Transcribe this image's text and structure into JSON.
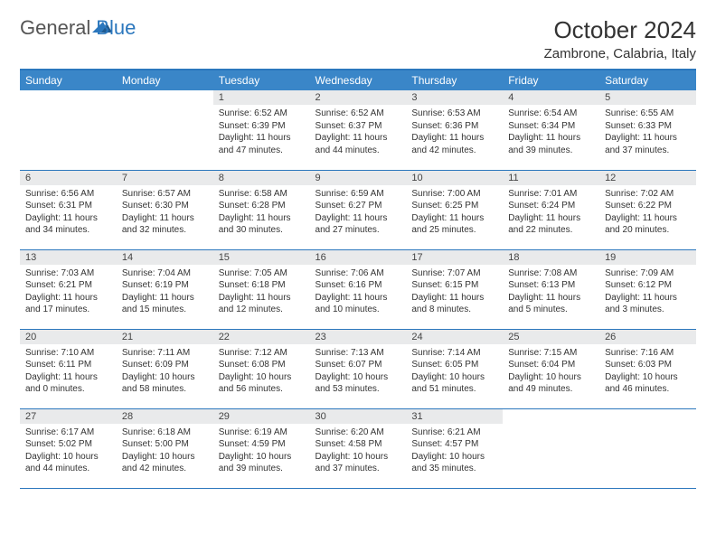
{
  "logo": {
    "text1": "General",
    "text2": "Blue"
  },
  "title": "October 2024",
  "location": "Zambrone, Calabria, Italy",
  "colors": {
    "header_bg": "#3a86c8",
    "border": "#2b77bd",
    "daynum_bg": "#e9eaeb",
    "text": "#333333"
  },
  "weekdays": [
    "Sunday",
    "Monday",
    "Tuesday",
    "Wednesday",
    "Thursday",
    "Friday",
    "Saturday"
  ],
  "weeks": [
    [
      null,
      null,
      {
        "n": "1",
        "sr": "Sunrise: 6:52 AM",
        "ss": "Sunset: 6:39 PM",
        "d1": "Daylight: 11 hours",
        "d2": "and 47 minutes."
      },
      {
        "n": "2",
        "sr": "Sunrise: 6:52 AM",
        "ss": "Sunset: 6:37 PM",
        "d1": "Daylight: 11 hours",
        "d2": "and 44 minutes."
      },
      {
        "n": "3",
        "sr": "Sunrise: 6:53 AM",
        "ss": "Sunset: 6:36 PM",
        "d1": "Daylight: 11 hours",
        "d2": "and 42 minutes."
      },
      {
        "n": "4",
        "sr": "Sunrise: 6:54 AM",
        "ss": "Sunset: 6:34 PM",
        "d1": "Daylight: 11 hours",
        "d2": "and 39 minutes."
      },
      {
        "n": "5",
        "sr": "Sunrise: 6:55 AM",
        "ss": "Sunset: 6:33 PM",
        "d1": "Daylight: 11 hours",
        "d2": "and 37 minutes."
      }
    ],
    [
      {
        "n": "6",
        "sr": "Sunrise: 6:56 AM",
        "ss": "Sunset: 6:31 PM",
        "d1": "Daylight: 11 hours",
        "d2": "and 34 minutes."
      },
      {
        "n": "7",
        "sr": "Sunrise: 6:57 AM",
        "ss": "Sunset: 6:30 PM",
        "d1": "Daylight: 11 hours",
        "d2": "and 32 minutes."
      },
      {
        "n": "8",
        "sr": "Sunrise: 6:58 AM",
        "ss": "Sunset: 6:28 PM",
        "d1": "Daylight: 11 hours",
        "d2": "and 30 minutes."
      },
      {
        "n": "9",
        "sr": "Sunrise: 6:59 AM",
        "ss": "Sunset: 6:27 PM",
        "d1": "Daylight: 11 hours",
        "d2": "and 27 minutes."
      },
      {
        "n": "10",
        "sr": "Sunrise: 7:00 AM",
        "ss": "Sunset: 6:25 PM",
        "d1": "Daylight: 11 hours",
        "d2": "and 25 minutes."
      },
      {
        "n": "11",
        "sr": "Sunrise: 7:01 AM",
        "ss": "Sunset: 6:24 PM",
        "d1": "Daylight: 11 hours",
        "d2": "and 22 minutes."
      },
      {
        "n": "12",
        "sr": "Sunrise: 7:02 AM",
        "ss": "Sunset: 6:22 PM",
        "d1": "Daylight: 11 hours",
        "d2": "and 20 minutes."
      }
    ],
    [
      {
        "n": "13",
        "sr": "Sunrise: 7:03 AM",
        "ss": "Sunset: 6:21 PM",
        "d1": "Daylight: 11 hours",
        "d2": "and 17 minutes."
      },
      {
        "n": "14",
        "sr": "Sunrise: 7:04 AM",
        "ss": "Sunset: 6:19 PM",
        "d1": "Daylight: 11 hours",
        "d2": "and 15 minutes."
      },
      {
        "n": "15",
        "sr": "Sunrise: 7:05 AM",
        "ss": "Sunset: 6:18 PM",
        "d1": "Daylight: 11 hours",
        "d2": "and 12 minutes."
      },
      {
        "n": "16",
        "sr": "Sunrise: 7:06 AM",
        "ss": "Sunset: 6:16 PM",
        "d1": "Daylight: 11 hours",
        "d2": "and 10 minutes."
      },
      {
        "n": "17",
        "sr": "Sunrise: 7:07 AM",
        "ss": "Sunset: 6:15 PM",
        "d1": "Daylight: 11 hours",
        "d2": "and 8 minutes."
      },
      {
        "n": "18",
        "sr": "Sunrise: 7:08 AM",
        "ss": "Sunset: 6:13 PM",
        "d1": "Daylight: 11 hours",
        "d2": "and 5 minutes."
      },
      {
        "n": "19",
        "sr": "Sunrise: 7:09 AM",
        "ss": "Sunset: 6:12 PM",
        "d1": "Daylight: 11 hours",
        "d2": "and 3 minutes."
      }
    ],
    [
      {
        "n": "20",
        "sr": "Sunrise: 7:10 AM",
        "ss": "Sunset: 6:11 PM",
        "d1": "Daylight: 11 hours",
        "d2": "and 0 minutes."
      },
      {
        "n": "21",
        "sr": "Sunrise: 7:11 AM",
        "ss": "Sunset: 6:09 PM",
        "d1": "Daylight: 10 hours",
        "d2": "and 58 minutes."
      },
      {
        "n": "22",
        "sr": "Sunrise: 7:12 AM",
        "ss": "Sunset: 6:08 PM",
        "d1": "Daylight: 10 hours",
        "d2": "and 56 minutes."
      },
      {
        "n": "23",
        "sr": "Sunrise: 7:13 AM",
        "ss": "Sunset: 6:07 PM",
        "d1": "Daylight: 10 hours",
        "d2": "and 53 minutes."
      },
      {
        "n": "24",
        "sr": "Sunrise: 7:14 AM",
        "ss": "Sunset: 6:05 PM",
        "d1": "Daylight: 10 hours",
        "d2": "and 51 minutes."
      },
      {
        "n": "25",
        "sr": "Sunrise: 7:15 AM",
        "ss": "Sunset: 6:04 PM",
        "d1": "Daylight: 10 hours",
        "d2": "and 49 minutes."
      },
      {
        "n": "26",
        "sr": "Sunrise: 7:16 AM",
        "ss": "Sunset: 6:03 PM",
        "d1": "Daylight: 10 hours",
        "d2": "and 46 minutes."
      }
    ],
    [
      {
        "n": "27",
        "sr": "Sunrise: 6:17 AM",
        "ss": "Sunset: 5:02 PM",
        "d1": "Daylight: 10 hours",
        "d2": "and 44 minutes."
      },
      {
        "n": "28",
        "sr": "Sunrise: 6:18 AM",
        "ss": "Sunset: 5:00 PM",
        "d1": "Daylight: 10 hours",
        "d2": "and 42 minutes."
      },
      {
        "n": "29",
        "sr": "Sunrise: 6:19 AM",
        "ss": "Sunset: 4:59 PM",
        "d1": "Daylight: 10 hours",
        "d2": "and 39 minutes."
      },
      {
        "n": "30",
        "sr": "Sunrise: 6:20 AM",
        "ss": "Sunset: 4:58 PM",
        "d1": "Daylight: 10 hours",
        "d2": "and 37 minutes."
      },
      {
        "n": "31",
        "sr": "Sunrise: 6:21 AM",
        "ss": "Sunset: 4:57 PM",
        "d1": "Daylight: 10 hours",
        "d2": "and 35 minutes."
      },
      null,
      null
    ]
  ]
}
